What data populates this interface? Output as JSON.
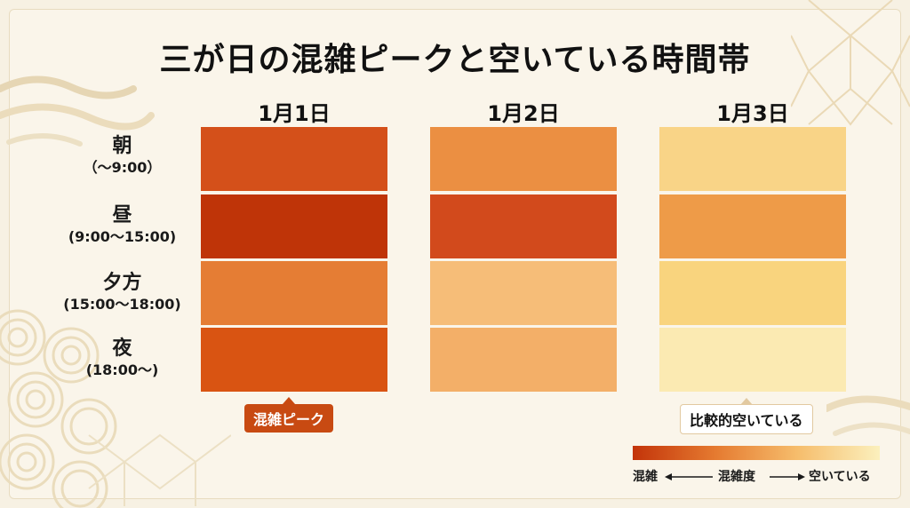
{
  "title": "三が日の混雑ピークと空いている時間帯",
  "chart_data": {
    "type": "heatmap",
    "columns": [
      "1月1日",
      "1月2日",
      "1月3日"
    ],
    "rows": [
      {
        "label": "朝",
        "sub": "（〜9:00）"
      },
      {
        "label": "昼",
        "sub": "(9:00〜15:00)"
      },
      {
        "label": "夕方",
        "sub": "(15:00〜18:00)"
      },
      {
        "label": "夜",
        "sub": "(18:00〜)"
      }
    ],
    "colors": [
      [
        "#d4501a",
        "#eb8f42",
        "#f9d487"
      ],
      [
        "#bf3408",
        "#d24a1c",
        "#ee9b48"
      ],
      [
        "#e57d34",
        "#f6bd78",
        "#f9d47e"
      ],
      [
        "#d95412",
        "#f3af68",
        "#fbeab2"
      ]
    ],
    "annotations": [
      {
        "text": "混雑ピーク",
        "column": 0,
        "style": "peak"
      },
      {
        "text": "比較的空いている",
        "column": 2,
        "style": "empty"
      }
    ],
    "legend": {
      "left": "混雑",
      "center": "混雑度",
      "right": "空いている",
      "colors": [
        "#c3340a",
        "#e57a30",
        "#f6bd6c",
        "#fbf0bd"
      ]
    }
  }
}
